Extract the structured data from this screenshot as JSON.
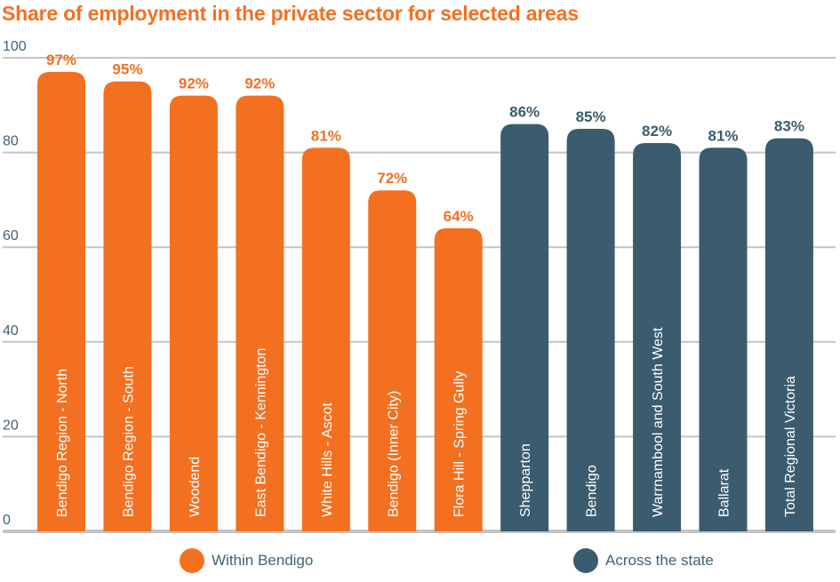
{
  "chart_data": {
    "type": "bar",
    "title": "Share of employment in the private sector for selected areas",
    "xlabel": "",
    "ylabel": "",
    "ylim": [
      0,
      100
    ],
    "yticks": [
      0,
      20,
      40,
      60,
      80,
      100
    ],
    "grid": true,
    "legend_position": "bottom",
    "categories": [
      "Bendigo Region - North",
      "Bendigo Region - South",
      "Woodend",
      "East Bendigo - Kennington",
      "White Hills - Ascot",
      "Bendigo (Inner City)",
      "Flora Hill - Spring Gully",
      "Shepparton",
      "Bendigo",
      "Warrnambool and South West",
      "Ballarat",
      "Total Regional Victoria"
    ],
    "values": [
      97,
      95,
      92,
      92,
      81,
      72,
      64,
      86,
      85,
      82,
      81,
      83
    ],
    "value_labels": [
      "97%",
      "95%",
      "92%",
      "92%",
      "81%",
      "72%",
      "64%",
      "86%",
      "85%",
      "82%",
      "81%",
      "83%"
    ],
    "groups": [
      0,
      0,
      0,
      0,
      0,
      0,
      0,
      1,
      1,
      1,
      1,
      1
    ],
    "series": [
      {
        "name": "Within Bendigo",
        "color": "#f37021"
      },
      {
        "name": "Across the state",
        "color": "#3a5c6e"
      }
    ]
  },
  "colors": {
    "orange": "#f37021",
    "slate": "#3a5c6e",
    "axis_text": "#3e6378",
    "grid": "#c4c4c6"
  }
}
